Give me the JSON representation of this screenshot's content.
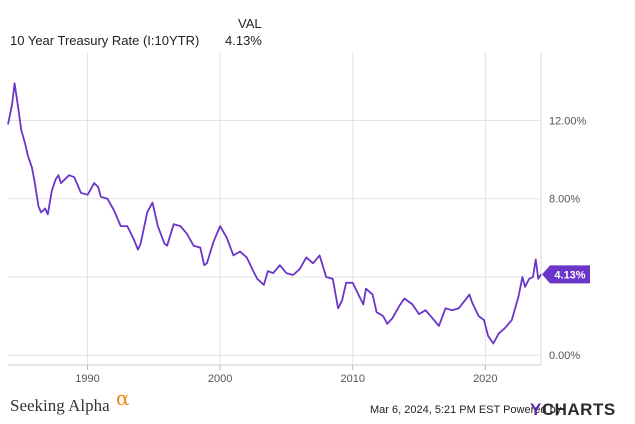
{
  "header": {
    "series_name": "10 Year Treasury Rate (I:10YTR)",
    "column_label": "VAL",
    "column_value": "4.13%"
  },
  "chart_data": {
    "type": "line",
    "series": [
      {
        "name": "10 Year Treasury Rate (I:10YTR)",
        "color": "#6a35c9",
        "x": [
          1984.0,
          1984.3,
          1984.5,
          1984.8,
          1985.0,
          1985.3,
          1985.5,
          1985.8,
          1986.0,
          1986.3,
          1986.5,
          1986.8,
          1987.0,
          1987.3,
          1987.6,
          1987.8,
          1988.0,
          1988.3,
          1988.6,
          1989.0,
          1989.5,
          1990.0,
          1990.5,
          1990.8,
          1991.0,
          1991.5,
          1992.0,
          1992.5,
          1993.0,
          1993.5,
          1993.8,
          1994.0,
          1994.5,
          1994.9,
          1995.3,
          1995.8,
          1996.0,
          1996.5,
          1997.0,
          1997.5,
          1998.0,
          1998.5,
          1998.8,
          1999.0,
          1999.5,
          2000.0,
          2000.5,
          2001.0,
          2001.5,
          2002.0,
          2002.5,
          2002.8,
          2003.3,
          2003.6,
          2004.0,
          2004.5,
          2005.0,
          2005.5,
          2006.0,
          2006.5,
          2007.0,
          2007.5,
          2008.0,
          2008.5,
          2008.9,
          2009.2,
          2009.5,
          2010.0,
          2010.5,
          2010.8,
          2011.0,
          2011.5,
          2011.8,
          2012.3,
          2012.6,
          2013.0,
          2013.5,
          2013.9,
          2014.5,
          2015.0,
          2015.5,
          2016.0,
          2016.5,
          2017.0,
          2017.5,
          2018.0,
          2018.8,
          2019.0,
          2019.5,
          2019.9,
          2020.2,
          2020.6,
          2021.0,
          2021.5,
          2022.0,
          2022.5,
          2022.8,
          2023.0,
          2023.3,
          2023.6,
          2023.8,
          2024.0,
          2024.2
        ],
        "y": [
          11.8,
          12.8,
          13.9,
          12.5,
          11.5,
          10.8,
          10.2,
          9.6,
          8.9,
          7.6,
          7.3,
          7.5,
          7.2,
          8.4,
          9.0,
          9.2,
          8.8,
          9.0,
          9.2,
          9.1,
          8.3,
          8.2,
          8.8,
          8.6,
          8.1,
          8.0,
          7.4,
          6.6,
          6.6,
          5.9,
          5.4,
          5.7,
          7.3,
          7.8,
          6.6,
          5.7,
          5.6,
          6.7,
          6.6,
          6.2,
          5.6,
          5.5,
          4.6,
          4.7,
          5.8,
          6.6,
          6.0,
          5.1,
          5.3,
          5.0,
          4.3,
          3.9,
          3.6,
          4.3,
          4.2,
          4.6,
          4.2,
          4.1,
          4.4,
          5.0,
          4.7,
          5.1,
          4.0,
          3.9,
          2.4,
          2.8,
          3.7,
          3.7,
          3.0,
          2.6,
          3.4,
          3.1,
          2.2,
          2.0,
          1.6,
          1.9,
          2.5,
          2.9,
          2.6,
          2.1,
          2.3,
          1.9,
          1.5,
          2.4,
          2.3,
          2.4,
          3.1,
          2.7,
          2.0,
          1.8,
          1.0,
          0.6,
          1.1,
          1.4,
          1.8,
          3.0,
          4.0,
          3.5,
          3.9,
          4.0,
          4.9,
          3.9,
          4.13
        ]
      }
    ],
    "xlim": [
      1984.0,
      2024.2
    ],
    "ylim": [
      -0.5,
      15.5
    ],
    "x_ticks": [
      {
        "value": 1990,
        "label": "1990"
      },
      {
        "value": 2000,
        "label": "2000"
      },
      {
        "value": 2010,
        "label": "2010"
      },
      {
        "value": 2020,
        "label": "2020"
      }
    ],
    "y_ticks": [
      {
        "value": 0,
        "label": "0.00%"
      },
      {
        "value": 4,
        "label": ""
      },
      {
        "value": 8,
        "label": "8.00%"
      },
      {
        "value": 12,
        "label": "12.00%"
      }
    ],
    "end_label": {
      "value": 4.13,
      "text": "4.13%",
      "color": "#6a35c9"
    },
    "grid": true,
    "title": "",
    "xlabel": "",
    "ylabel": ""
  },
  "footer": {
    "brand_name": "Seeking Alpha",
    "brand_symbol": "α",
    "timestamp": "Mar 6, 2024, 5:21 PM EST",
    "powered_by": "Powered by",
    "ycharts_y": "Y",
    "ycharts_rest": "CHARTS"
  }
}
